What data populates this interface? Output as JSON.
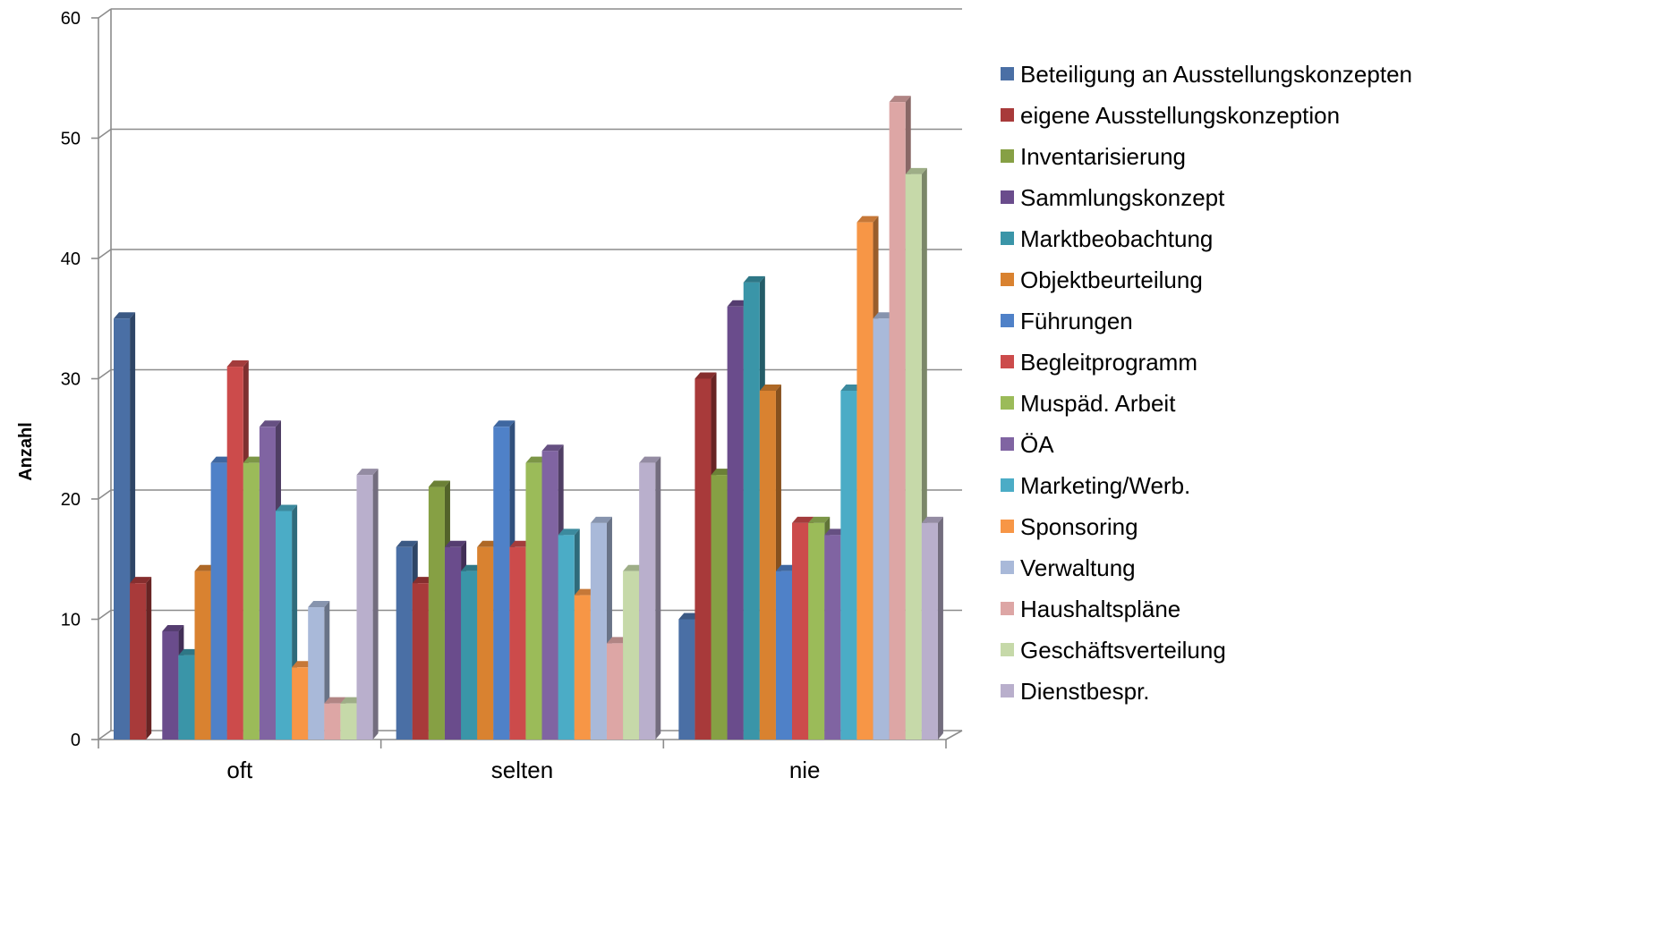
{
  "chart_data": {
    "type": "bar",
    "style": "3d-clustered-column",
    "ylabel": "Anzahl",
    "xlabel": "",
    "ylim": [
      0,
      60
    ],
    "ytick_step": 10,
    "yticks": [
      "0",
      "10",
      "20",
      "30",
      "40",
      "50",
      "60"
    ],
    "grid": true,
    "legend_position": "right",
    "categories": [
      "oft",
      "selten",
      "nie"
    ],
    "series": [
      {
        "name": "Beteiligung an Ausstellungskonzepten",
        "color": "#4A6FA5",
        "values": [
          35,
          16,
          10
        ]
      },
      {
        "name": "eigene Ausstellungskonzeption",
        "color": "#A83A3A",
        "values": [
          13,
          13,
          30
        ]
      },
      {
        "name": "Inventarisierung",
        "color": "#86A044",
        "values": [
          0,
          21,
          22
        ]
      },
      {
        "name": "Sammlungskonzept",
        "color": "#6A4C8C",
        "values": [
          9,
          16,
          36
        ]
      },
      {
        "name": "Marktbeobachtung",
        "color": "#3A95A8",
        "values": [
          7,
          14,
          38
        ]
      },
      {
        "name": "Objektbeurteilung",
        "color": "#D98230",
        "values": [
          14,
          16,
          29
        ]
      },
      {
        "name": "Führungen",
        "color": "#4F81C8",
        "values": [
          23,
          26,
          14
        ]
      },
      {
        "name": "Begleitprogramm",
        "color": "#CC4B4B",
        "values": [
          31,
          16,
          18
        ]
      },
      {
        "name": "Muspäd. Arbeit",
        "color": "#9BBB59",
        "values": [
          23,
          23,
          18
        ]
      },
      {
        "name": "ÖA",
        "color": "#8064A2",
        "values": [
          26,
          24,
          17
        ]
      },
      {
        "name": "Marketing/Werb.",
        "color": "#4BACC6",
        "values": [
          19,
          17,
          29
        ]
      },
      {
        "name": "Sponsoring",
        "color": "#F79646",
        "values": [
          6,
          12,
          43
        ]
      },
      {
        "name": "Verwaltung",
        "color": "#A9B9D9",
        "values": [
          11,
          18,
          35
        ]
      },
      {
        "name": "Haushaltspläne",
        "color": "#DDA6A5",
        "values": [
          3,
          8,
          53
        ]
      },
      {
        "name": "Geschäftsverteilung",
        "color": "#C6D9A9",
        "values": [
          3,
          14,
          47
        ]
      },
      {
        "name": "Dienstbespr.",
        "color": "#B9AFCC",
        "values": [
          22,
          23,
          18
        ]
      }
    ]
  }
}
